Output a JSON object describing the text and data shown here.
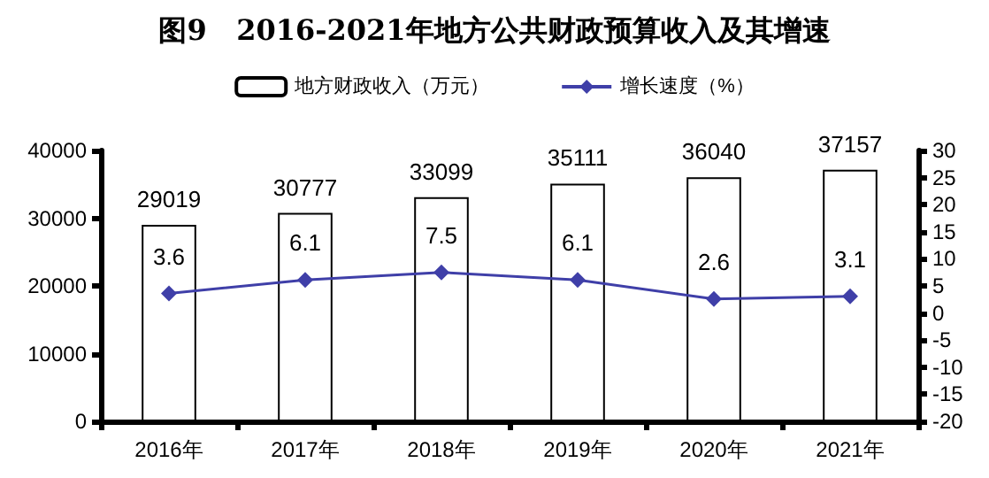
{
  "chart_data": {
    "type": "bar",
    "title": "图9   2016-2021年地方公共财政预算收入及其增速",
    "categories": [
      "2016年",
      "2017年",
      "2018年",
      "2019年",
      "2020年",
      "2021年"
    ],
    "series": [
      {
        "name": "地方财政收入（万元）",
        "color": "#ffffff",
        "values": [
          29019,
          30777,
          33099,
          35111,
          36040,
          37157
        ]
      },
      {
        "name": "增长速度（%）",
        "type": "line",
        "axis": "y2",
        "color": "#3f3fa8",
        "marker": "diamond",
        "values": [
          3.6,
          6.1,
          7.5,
          6.1,
          2.6,
          3.1
        ]
      }
    ],
    "ylim": [
      0,
      40000
    ],
    "yticks": [
      0,
      10000,
      20000,
      30000,
      40000
    ],
    "y2lim": [
      -20,
      30
    ],
    "y2ticks": [
      -20,
      -15,
      -10,
      -5,
      0,
      5,
      10,
      15,
      20,
      25,
      30
    ],
    "data_labels": true,
    "legend": "top",
    "grid": false
  }
}
